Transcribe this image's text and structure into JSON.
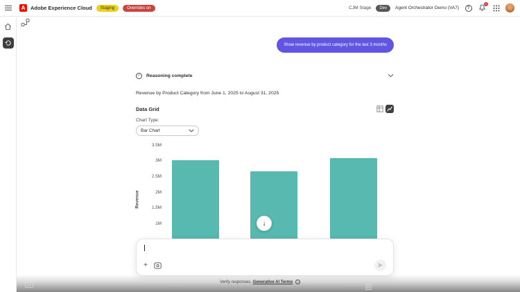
{
  "header": {
    "product_name": "Adobe Experience Cloud",
    "staging_badge": "Staging",
    "overrides_badge": "Overrides on",
    "env_name": "CJM Stage",
    "dev_badge": "Dev",
    "org_name": "Agent Orchestrator Demo (VA7)",
    "notification_count": "1"
  },
  "conversation": {
    "user_message": "Show revenue by product category for the last 3 months",
    "reasoning_status": "Reasoning complete",
    "response_summary": "Revenue by Product Category from June 1, 2025 to August 31, 2025",
    "data_grid_title": "Data Grid",
    "chart_type_label": "Chart Type:",
    "chart_type_selected": "Bar Chart"
  },
  "composer": {
    "input_value": "",
    "footer_prefix": "Verify responses.",
    "terms_link_text": "Generative AI Terms"
  },
  "chart_data": {
    "type": "bar",
    "title": "Revenue by Product Category from June 1, 2025 to August 31, 2025",
    "xlabel": "",
    "ylabel": "Revenue",
    "ytick_labels": [
      "3.5M",
      "3M",
      "2.5M",
      "2M",
      "1.5M",
      "1M"
    ],
    "ytick_values_m": [
      3.5,
      3,
      2.5,
      2,
      1.5,
      1
    ],
    "values_m": [
      3.0,
      2.65,
      3.08
    ],
    "bar_color": "#57b9b0",
    "legend_position": "none",
    "grid": "off",
    "note": "category axis labels are hidden behind the chat composer overlay"
  },
  "colors": {
    "accent_purple": "#6155e4",
    "bar_teal": "#57b9b0",
    "staging_yellow": "#e8d21d",
    "overrides_red": "#c9453f",
    "adobe_red": "#eb1000",
    "notification_red": "#d7373f",
    "selected_rail": "#3e3e3e"
  }
}
